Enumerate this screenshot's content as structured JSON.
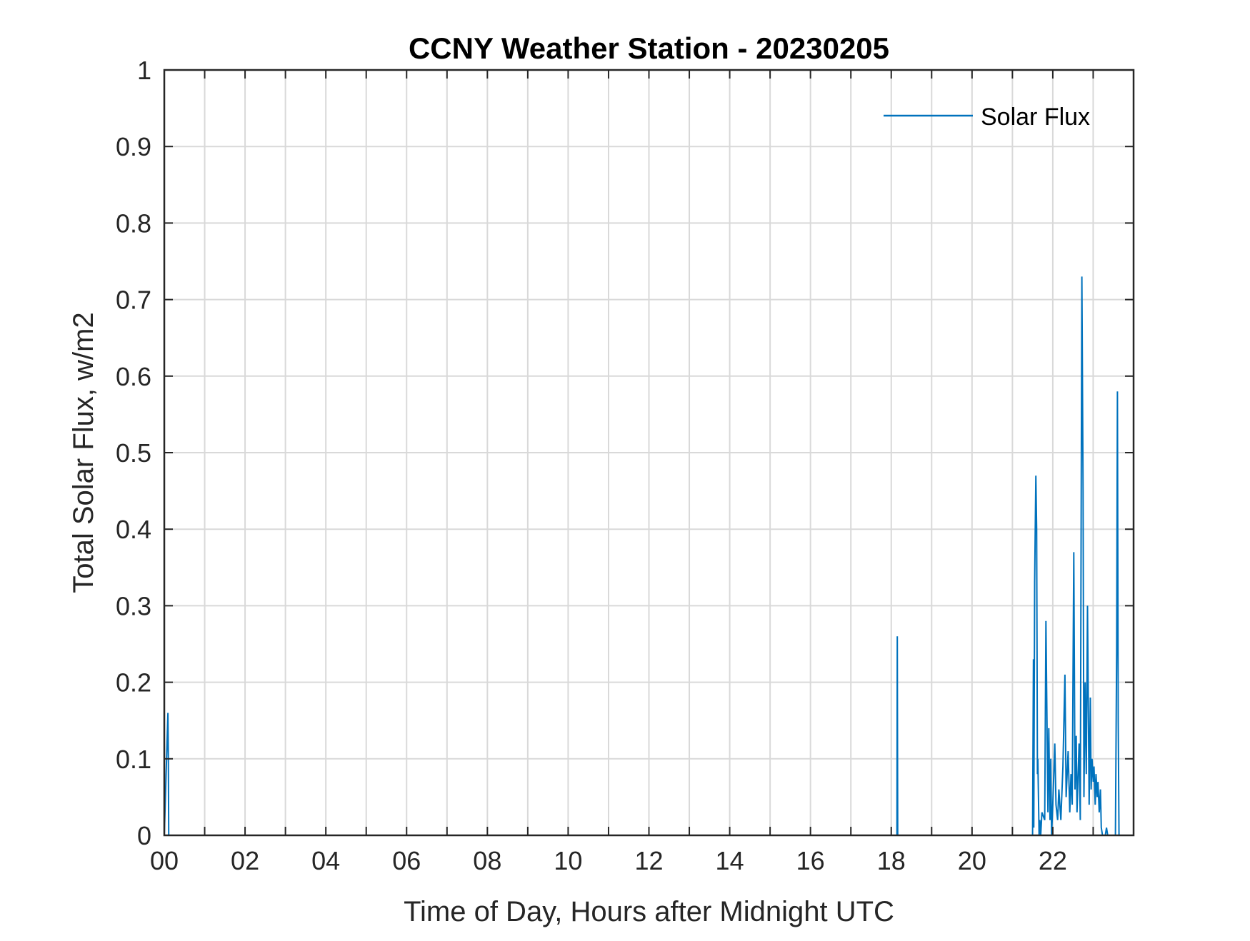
{
  "chart_data": {
    "type": "line",
    "title": "CCNY Weather Station - 20230205",
    "xlabel": "Time of Day, Hours after Midnight UTC",
    "ylabel": "Total Solar Flux, w/m2",
    "xlim": [
      0,
      24
    ],
    "ylim": [
      0,
      1
    ],
    "grid": true,
    "legend_location": "top-right",
    "x_ticks": [
      0,
      2,
      4,
      6,
      8,
      10,
      12,
      14,
      16,
      18,
      20,
      22
    ],
    "x_tick_labels": [
      "00",
      "02",
      "04",
      "06",
      "08",
      "10",
      "12",
      "14",
      "16",
      "18",
      "20",
      "22"
    ],
    "y_ticks": [
      0,
      0.1,
      0.2,
      0.3,
      0.4,
      0.5,
      0.6,
      0.7,
      0.8,
      0.9,
      1
    ],
    "y_tick_labels": [
      "0",
      "0.1",
      "0.2",
      "0.3",
      "0.4",
      "0.5",
      "0.6",
      "0.7",
      "0.8",
      "0.9",
      "1"
    ],
    "series": [
      {
        "name": "Solar Flux",
        "color": "#0072BD",
        "x": [
          0,
          0.09,
          0.1,
          0.11,
          18.14,
          18.15,
          18.16,
          21.5,
          21.52,
          21.53,
          21.55,
          21.58,
          21.6,
          21.62,
          21.63,
          21.66,
          21.68,
          21.7,
          21.73,
          21.8,
          21.83,
          21.88,
          21.9,
          21.93,
          21.95,
          21.97,
          22.0,
          22.05,
          22.08,
          22.12,
          22.15,
          22.2,
          22.25,
          22.3,
          22.33,
          22.38,
          22.42,
          22.45,
          22.48,
          22.52,
          22.55,
          22.58,
          22.6,
          22.65,
          22.68,
          22.72,
          22.75,
          22.77,
          22.8,
          22.83,
          22.86,
          22.9,
          22.93,
          22.95,
          22.97,
          23.0,
          23.02,
          23.05,
          23.07,
          23.1,
          23.12,
          23.15,
          23.18,
          23.2,
          23.23,
          23.26,
          23.3,
          23.33,
          23.36,
          23.55,
          23.58,
          23.6,
          23.62,
          23.64
        ],
        "values": [
          0,
          0.16,
          0.1,
          0,
          0,
          0.26,
          0,
          0,
          0.23,
          0.01,
          0.33,
          0.47,
          0.4,
          0.08,
          0.1,
          0,
          0.02,
          0,
          0.03,
          0.02,
          0.28,
          0.03,
          0.14,
          0.02,
          0.1,
          0,
          0.04,
          0.12,
          0.04,
          0.02,
          0.06,
          0.02,
          0.09,
          0.21,
          0.05,
          0.11,
          0.03,
          0.08,
          0.04,
          0.37,
          0.06,
          0.13,
          0.03,
          0.12,
          0.02,
          0.73,
          0.45,
          0.05,
          0.2,
          0.08,
          0.3,
          0.04,
          0.18,
          0.06,
          0.1,
          0.07,
          0.09,
          0.04,
          0.08,
          0.05,
          0.07,
          0.03,
          0.06,
          0.01,
          0,
          0,
          0,
          0.01,
          0,
          0,
          0.24,
          0.58,
          0.15,
          0
        ]
      }
    ]
  },
  "legend": {
    "items": [
      "Solar Flux"
    ]
  }
}
